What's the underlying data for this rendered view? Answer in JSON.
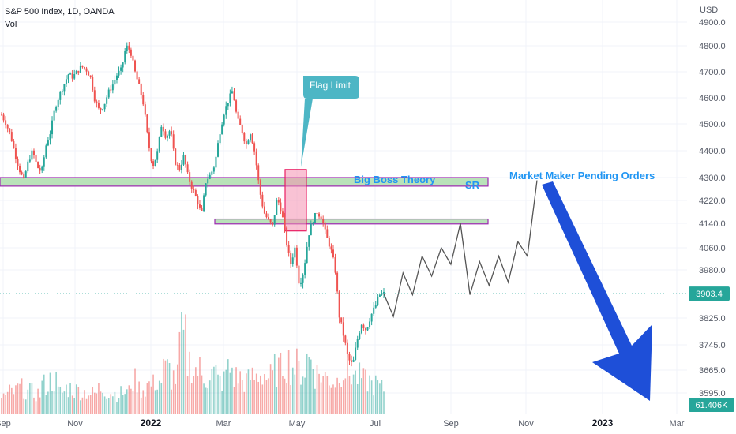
{
  "header": {
    "title": "S&P 500 Index, 1D, OANDA",
    "vol_label": "Vol",
    "currency": "USD"
  },
  "colors": {
    "up": "#26a69a",
    "down": "#ef5350",
    "sr_fill": "#b9e2b9",
    "sr_border": "#9c27b0",
    "flag_fill": "#f48fb1",
    "flag_border": "#e91e63",
    "callout": "#4db6c5",
    "arrow": "#1e4fd8",
    "annotation": "#2196f3",
    "price_line": "#26a69a"
  },
  "chart_data": {
    "type": "candlestick",
    "title": "S&P 500 Index, 1D, OANDA",
    "y_axis": {
      "label": "USD",
      "range": [
        3560,
        4920
      ],
      "ticks": [
        "4900.0",
        "4800.0",
        "4700.0",
        "4600.0",
        "4500.0",
        "4400.0",
        "4300.0",
        "4220.0",
        "4140.0",
        "4060.0",
        "3980.0",
        "3825.0",
        "3745.0",
        "3665.0",
        "3595.0"
      ]
    },
    "x_axis": {
      "ticks": [
        {
          "label": "Sep",
          "bold": false
        },
        {
          "label": "Nov",
          "bold": false
        },
        {
          "label": "2022",
          "bold": true
        },
        {
          "label": "Mar",
          "bold": false
        },
        {
          "label": "May",
          "bold": false
        },
        {
          "label": "Jul",
          "bold": false
        },
        {
          "label": "Sep",
          "bold": false
        },
        {
          "label": "Nov",
          "bold": false
        },
        {
          "label": "2023",
          "bold": true
        },
        {
          "label": "Mar",
          "bold": false
        }
      ]
    },
    "last_price": {
      "value": 3903.4,
      "label": "3903.4"
    },
    "last_volume": {
      "label": "61.406K"
    },
    "price_path": [
      4535,
      4500,
      4460,
      4390,
      4330,
      4290,
      4360,
      4400,
      4340,
      4320,
      4420,
      4470,
      4560,
      4610,
      4650,
      4690,
      4680,
      4700,
      4720,
      4710,
      4680,
      4590,
      4550,
      4570,
      4620,
      4650,
      4690,
      4710,
      4800,
      4780,
      4700,
      4640,
      4570,
      4430,
      4340,
      4390,
      4500,
      4450,
      4480,
      4360,
      4330,
      4380,
      4300,
      4260,
      4220,
      4170,
      4290,
      4310,
      4350,
      4460,
      4540,
      4590,
      4630,
      4520,
      4480,
      4420,
      4470,
      4390,
      4260,
      4180,
      4150,
      4130,
      4230,
      4180,
      4090,
      4000,
      4060,
      3930,
      3980,
      4100,
      4150,
      4180,
      4160,
      4100,
      4060,
      3990,
      3830,
      3770,
      3700,
      3680,
      3760,
      3810,
      3790,
      3830,
      3860,
      3900,
      3903
    ],
    "projection": [
      3903,
      3830,
      3970,
      3900,
      4030,
      3960,
      4060,
      4000,
      4140,
      3900,
      4010,
      3930,
      4030,
      3940,
      4080,
      4030,
      4290
    ],
    "volume_profile": [
      0.25,
      0.3,
      0.35,
      0.3,
      0.28,
      0.4,
      0.45,
      0.3,
      0.35,
      0.32,
      0.3,
      0.28,
      0.35,
      0.3,
      0.28,
      0.3,
      0.45,
      0.35,
      0.4,
      0.45,
      0.6,
      0.5,
      1.0,
      0.7,
      0.6,
      0.5,
      0.55,
      0.45,
      0.6,
      0.5,
      0.45,
      0.5,
      0.55,
      0.5,
      0.6,
      0.7,
      0.65,
      0.6,
      0.75,
      0.55,
      0.5,
      0.45,
      0.6,
      0.55,
      0.5,
      0.45,
      0.4,
      0.35
    ],
    "annotations": {
      "sr_upper": {
        "range": [
          4270,
          4300
        ]
      },
      "sr_lower": {
        "range": [
          4138,
          4155
        ]
      },
      "flag_zone": {
        "range": [
          4115,
          4330
        ]
      },
      "flag_limit": {
        "label": "Flag Limit"
      },
      "big_boss": {
        "label": "Big Boss Theory"
      },
      "sr_label": {
        "label": "SR"
      },
      "mm_label": {
        "label": "Market Maker Pending Orders"
      }
    }
  }
}
